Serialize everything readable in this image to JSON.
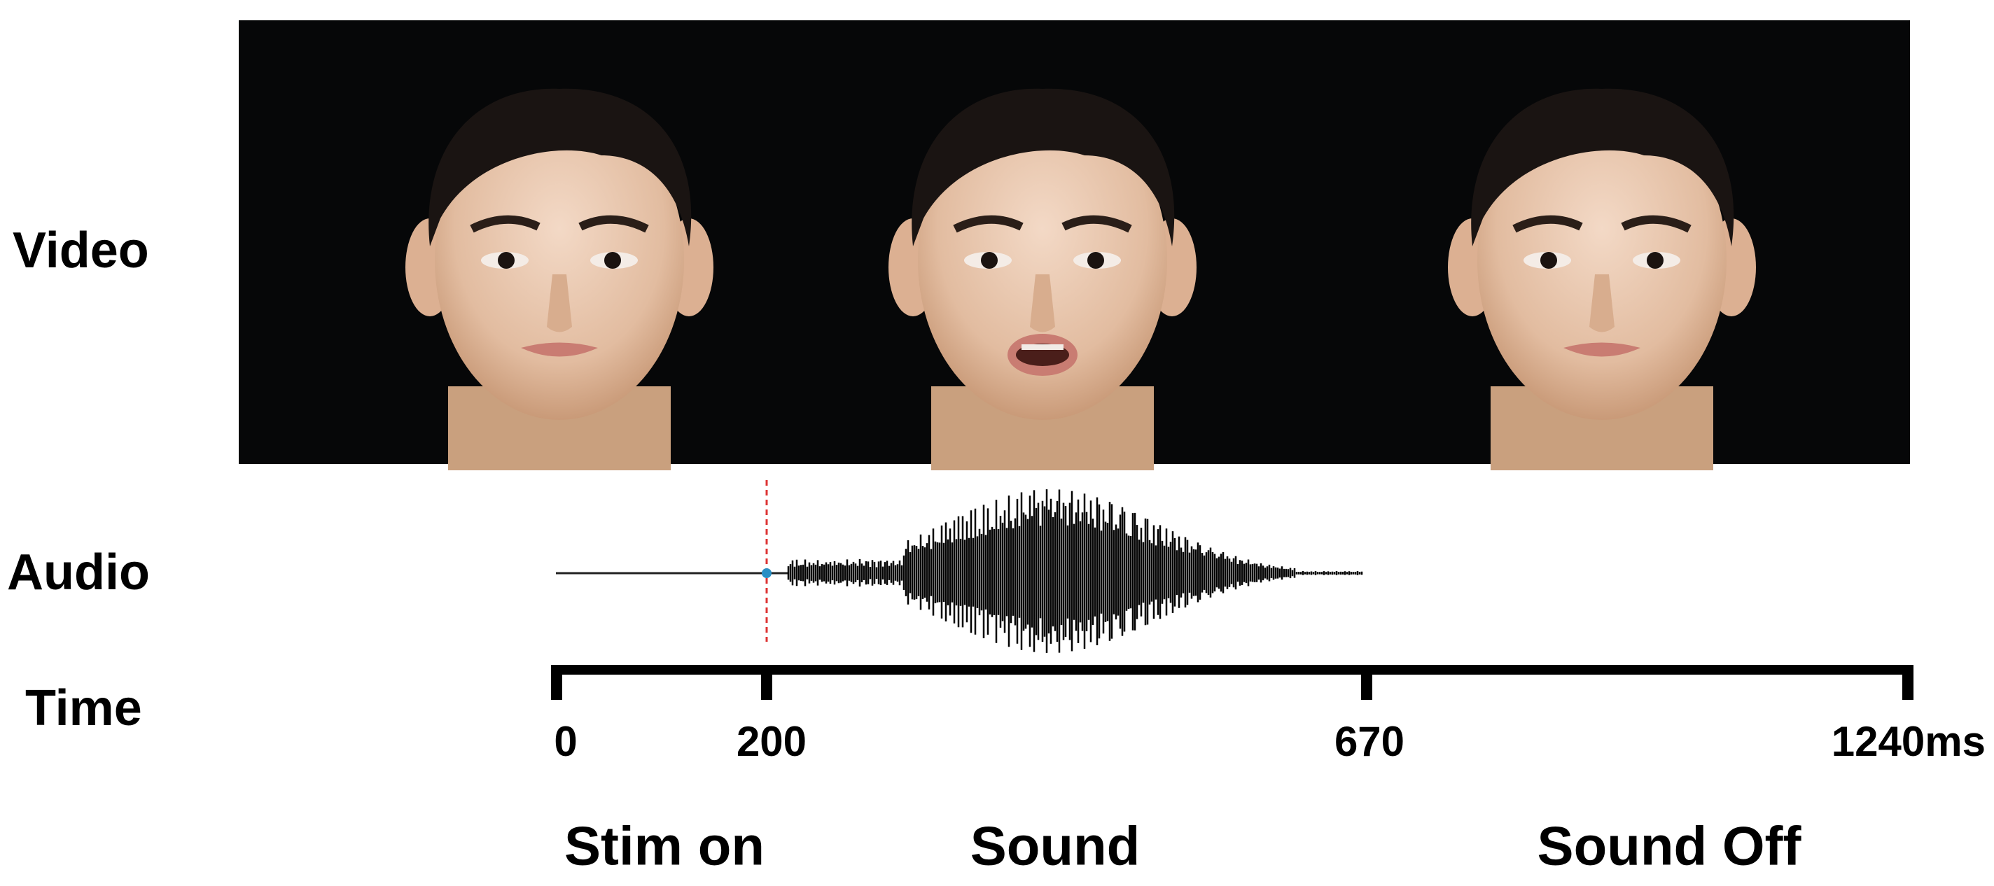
{
  "rows": {
    "video": "Video",
    "audio": "Audio",
    "time": "Time"
  },
  "timeline": {
    "ticks": [
      "0",
      "200",
      "670",
      "1240ms"
    ]
  },
  "events": [
    "Stim on",
    "Sound",
    "Sound Off"
  ]
}
